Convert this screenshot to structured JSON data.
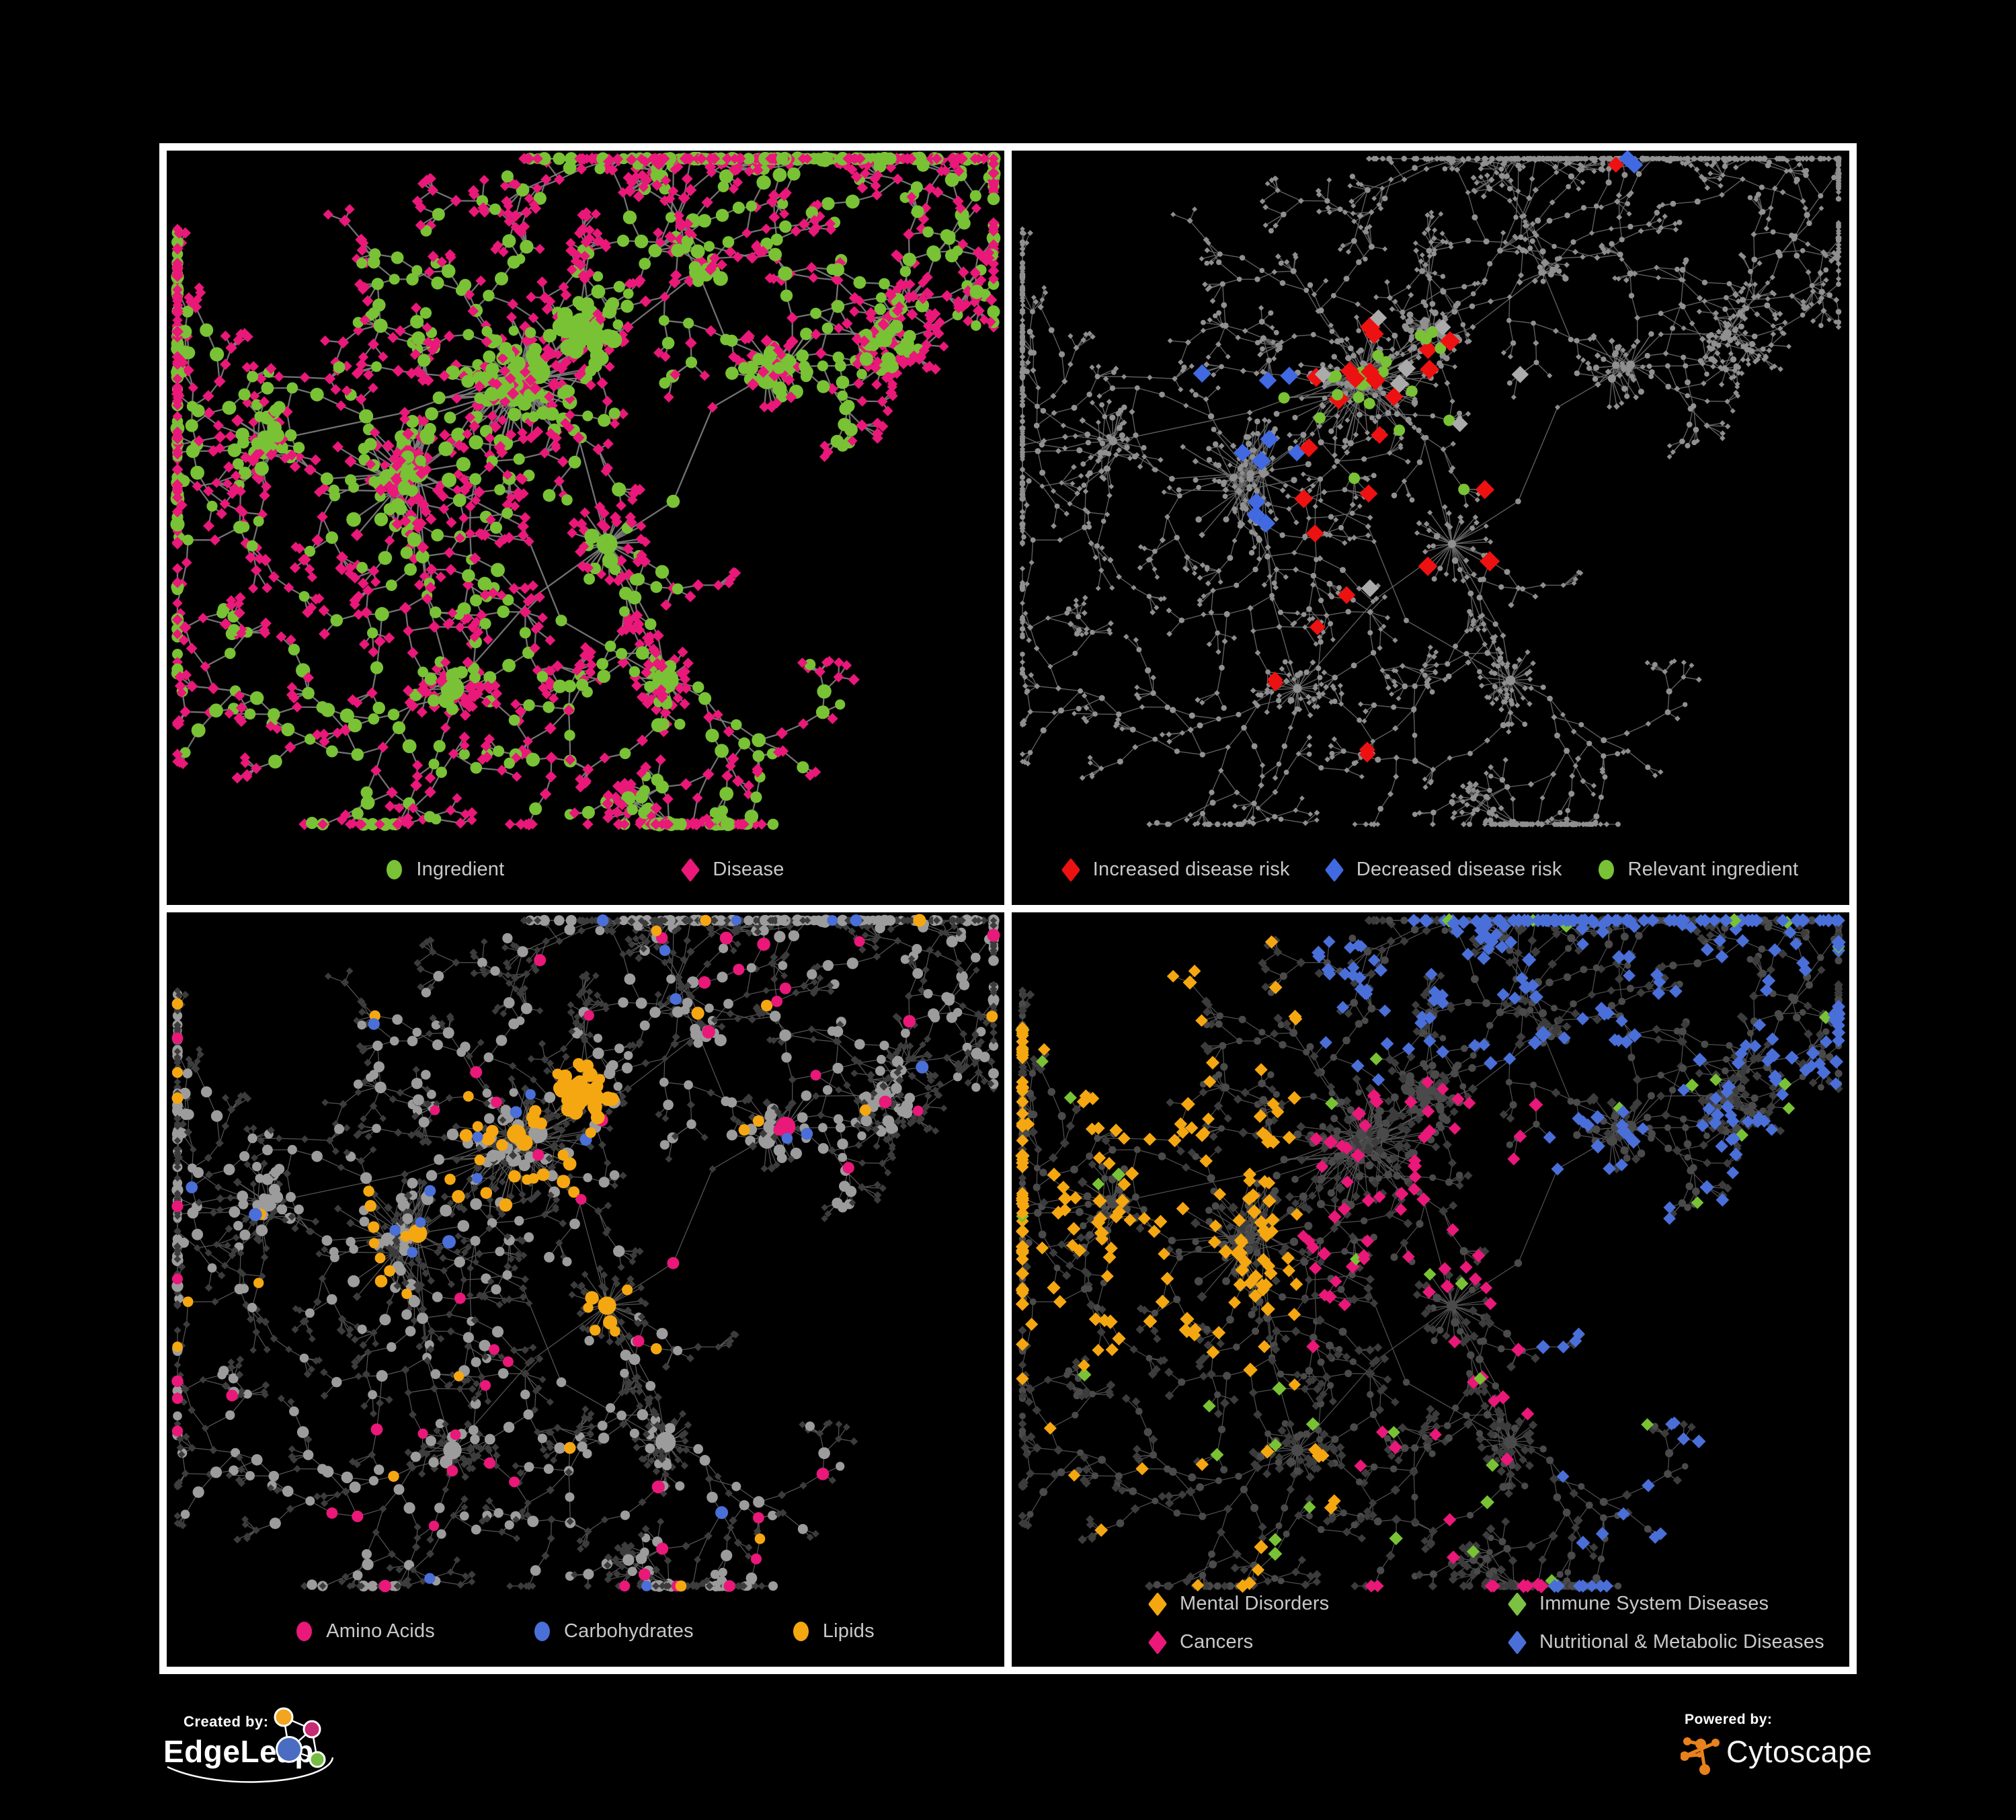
{
  "figure": {
    "background": "#000000",
    "frame_color": "#ffffff"
  },
  "panels": [
    {
      "id": "ingredient-disease-network",
      "legend": [
        {
          "shape": "circle",
          "color": "#79C235",
          "label": "Ingredient"
        },
        {
          "shape": "diamond",
          "color": "#E91879",
          "label": "Disease"
        }
      ]
    },
    {
      "id": "disease-risk-network",
      "legend": [
        {
          "shape": "diamond",
          "color": "#EE1111",
          "label": "Increased disease risk"
        },
        {
          "shape": "diamond",
          "color": "#4169E1",
          "label": "Decreased disease risk"
        },
        {
          "shape": "circle",
          "color": "#79C235",
          "label": "Relevant ingredient"
        }
      ]
    },
    {
      "id": "nutrient-class-network",
      "legend": [
        {
          "shape": "circle",
          "color": "#E91879",
          "label": "Amino Acids"
        },
        {
          "shape": "circle",
          "color": "#4A6FD8",
          "label": "Carbohydrates"
        },
        {
          "shape": "circle",
          "color": "#F5A712",
          "label": "Lipids"
        }
      ]
    },
    {
      "id": "disease-class-network",
      "legend": [
        {
          "shape": "diamond",
          "color": "#F5A712",
          "label": "Mental Disorders"
        },
        {
          "shape": "diamond",
          "color": "#7CC142",
          "label": "Immune System Diseases"
        },
        {
          "shape": "diamond",
          "color": "#E91879",
          "label": "Cancers"
        },
        {
          "shape": "diamond",
          "color": "#4A6FD8",
          "label": "Nutritional & Metabolic Diseases"
        }
      ]
    }
  ],
  "footer": {
    "created_by": "Created by:",
    "edgeleap": "EdgeLeap",
    "powered_by": "Powered by:",
    "cytoscape": "Cytoscape",
    "edgeleap_logo_colors": {
      "orange": "#F2A51E",
      "magenta": "#C72B74",
      "blue": "#4A6CC3",
      "green": "#76BC43"
    },
    "cytoscape_logo_color": "#E8821E"
  },
  "network": {
    "seed": 20,
    "palette": {
      "green": "#79C235",
      "pink": "#E91879",
      "red": "#EE1111",
      "royal_blue": "#4169E1",
      "blue": "#4A6FD8",
      "gold": "#F5A712",
      "light_gray": "#9C9C9C",
      "mid_gray": "#8E8E8E",
      "dark_diamond": "#3C3C3C",
      "dark_circle": "#4A4A4A",
      "highlight_gray": "#ABABAB"
    },
    "panel_styles": [
      {
        "edge": "#7E7E7E",
        "edge_width": 2.3
      },
      {
        "edge": "#6C6C6C",
        "edge_width": 1.35
      },
      {
        "edge": "#5E5E5E",
        "edge_width": 1.25
      },
      {
        "edge": "#585858",
        "edge_width": 1.25
      }
    ]
  }
}
